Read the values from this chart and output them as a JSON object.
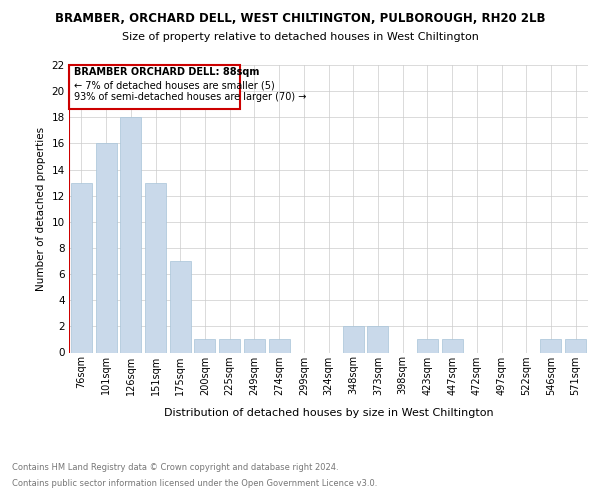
{
  "title": "BRAMBER, ORCHARD DELL, WEST CHILTINGTON, PULBOROUGH, RH20 2LB",
  "subtitle": "Size of property relative to detached houses in West Chiltington",
  "xlabel": "Distribution of detached houses by size in West Chiltington",
  "ylabel": "Number of detached properties",
  "categories": [
    "76sqm",
    "101sqm",
    "126sqm",
    "151sqm",
    "175sqm",
    "200sqm",
    "225sqm",
    "249sqm",
    "274sqm",
    "299sqm",
    "324sqm",
    "348sqm",
    "373sqm",
    "398sqm",
    "423sqm",
    "447sqm",
    "472sqm",
    "497sqm",
    "522sqm",
    "546sqm",
    "571sqm"
  ],
  "values": [
    13,
    16,
    18,
    13,
    7,
    1,
    1,
    1,
    1,
    0,
    0,
    2,
    2,
    0,
    1,
    1,
    0,
    0,
    0,
    1,
    1
  ],
  "bar_color": "#c9d9ea",
  "bar_edgecolor": "#a8c4d8",
  "annotation_box_edgecolor": "#cc0000",
  "annotation_line_color": "#cc0000",
  "annotation_text_line1": "BRAMBER ORCHARD DELL: 88sqm",
  "annotation_text_line2": "← 7% of detached houses are smaller (5)",
  "annotation_text_line3": "93% of semi-detached houses are larger (70) →",
  "ylim": [
    0,
    22
  ],
  "yticks": [
    0,
    2,
    4,
    6,
    8,
    10,
    12,
    14,
    16,
    18,
    20,
    22
  ],
  "footer_line1": "Contains HM Land Registry data © Crown copyright and database right 2024.",
  "footer_line2": "Contains public sector information licensed under the Open Government Licence v3.0.",
  "background_color": "#ffffff",
  "grid_color": "#cccccc"
}
